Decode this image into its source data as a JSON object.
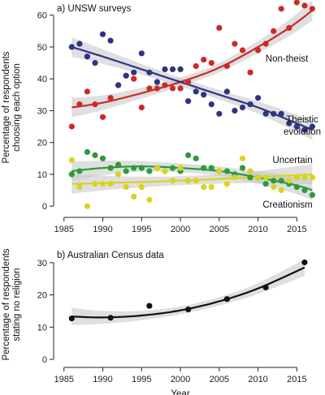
{
  "colors": {
    "nontheist": "#cc2a24",
    "theistic": "#2c3585",
    "uncertain": "#2e9a3a",
    "creationism": "#d8d420",
    "census": "#111111",
    "band": "#c4c4c4",
    "axis": "#222222"
  },
  "chart_data": [
    {
      "type": "scatter",
      "title": "a) UNSW surveys",
      "xlabel": "",
      "ylabel": "Percentage of respondents choosing each option",
      "ylabel_lines": [
        "Percentage of respondents",
        "choosing each option"
      ],
      "xlim": [
        1984.5,
        2018
      ],
      "ylim": [
        -2,
        64
      ],
      "xticks": [
        1985,
        1990,
        1995,
        2000,
        2005,
        2010,
        2015
      ],
      "yticks": [
        0,
        10,
        20,
        30,
        40,
        50,
        60
      ],
      "series": [
        {
          "name": "Non-theist",
          "label_lines": [
            "Non-theist"
          ],
          "color": "#cc2a24",
          "points": [
            [
              1986,
              25
            ],
            [
              1987,
              32
            ],
            [
              1988,
              36
            ],
            [
              1989,
              32
            ],
            [
              1990,
              28
            ],
            [
              1991,
              34
            ],
            [
              1992,
              38
            ],
            [
              1993,
              41
            ],
            [
              1994,
              40
            ],
            [
              1995,
              31
            ],
            [
              1996,
              37
            ],
            [
              1997,
              37
            ],
            [
              1998,
              38
            ],
            [
              1999,
              37
            ],
            [
              2000,
              37
            ],
            [
              2001,
              39
            ],
            [
              2002,
              44
            ],
            [
              2003,
              46
            ],
            [
              2004,
              45
            ],
            [
              2005,
              56
            ],
            [
              2006,
              44
            ],
            [
              2007,
              51
            ],
            [
              2008,
              49
            ],
            [
              2009,
              42
            ],
            [
              2010,
              49
            ],
            [
              2011,
              51
            ],
            [
              2012,
              55
            ],
            [
              2013,
              62
            ],
            [
              2014,
              56
            ],
            [
              2015,
              64
            ],
            [
              2016,
              63
            ],
            [
              2017,
              62
            ]
          ],
          "trend": [
            [
              1986,
              31
            ],
            [
              1990,
              32.5
            ],
            [
              1995,
              35.5
            ],
            [
              2000,
              39
            ],
            [
              2005,
              43.5
            ],
            [
              2010,
              50
            ],
            [
              2014,
              56
            ],
            [
              2017,
              61.5
            ]
          ]
        },
        {
          "name": "Theistic evolution",
          "label_lines": [
            "Theistic",
            "evolution"
          ],
          "color": "#2c3585",
          "points": [
            [
              1986,
              50
            ],
            [
              1987,
              51
            ],
            [
              1988,
              47
            ],
            [
              1989,
              45
            ],
            [
              1990,
              54
            ],
            [
              1991,
              52
            ],
            [
              1992,
              38
            ],
            [
              1993,
              41
            ],
            [
              1994,
              42
            ],
            [
              1995,
              48
            ],
            [
              1996,
              42
            ],
            [
              1997,
              39
            ],
            [
              1998,
              43
            ],
            [
              1999,
              43
            ],
            [
              2000,
              43
            ],
            [
              2001,
              33
            ],
            [
              2002,
              36
            ],
            [
              2003,
              35
            ],
            [
              2004,
              32
            ],
            [
              2005,
              29
            ],
            [
              2006,
              36
            ],
            [
              2007,
              30
            ],
            [
              2008,
              31
            ],
            [
              2009,
              32
            ],
            [
              2010,
              34
            ],
            [
              2011,
              29
            ],
            [
              2012,
              29
            ],
            [
              2013,
              29
            ],
            [
              2014,
              26
            ],
            [
              2015,
              25
            ],
            [
              2016,
              24
            ],
            [
              2017,
              25
            ]
          ],
          "trend": [
            [
              1986,
              50
            ],
            [
              1990,
              47
            ],
            [
              1995,
              43
            ],
            [
              2000,
              39
            ],
            [
              2005,
              35
            ],
            [
              2010,
              31
            ],
            [
              2015,
              26
            ],
            [
              2017,
              24
            ]
          ]
        },
        {
          "name": "Uncertain",
          "label_lines": [
            "Uncertain"
          ],
          "color": "#2e9a3a",
          "points": [
            [
              1986,
              10
            ],
            [
              1987,
              11
            ],
            [
              1988,
              17
            ],
            [
              1989,
              16
            ],
            [
              1990,
              15
            ],
            [
              1991,
              12
            ],
            [
              1992,
              13
            ],
            [
              1993,
              11
            ],
            [
              1994,
              12
            ],
            [
              1995,
              12
            ],
            [
              1996,
              11
            ],
            [
              1997,
              12
            ],
            [
              1998,
              11
            ],
            [
              1999,
              12
            ],
            [
              2000,
              11
            ],
            [
              2001,
              16
            ],
            [
              2002,
              15
            ],
            [
              2003,
              12
            ],
            [
              2004,
              12
            ],
            [
              2005,
              11
            ],
            [
              2006,
              11
            ],
            [
              2007,
              10
            ],
            [
              2008,
              12
            ],
            [
              2009,
              9
            ],
            [
              2010,
              9
            ],
            [
              2011,
              7
            ],
            [
              2012,
              8
            ],
            [
              2013,
              8
            ],
            [
              2014,
              7
            ],
            [
              2015,
              6
            ],
            [
              2016,
              5
            ],
            [
              2017,
              3.5
            ]
          ],
          "trend": [
            [
              1986,
              11
            ],
            [
              1990,
              12
            ],
            [
              1995,
              12.5
            ],
            [
              2000,
              12
            ],
            [
              2005,
              11
            ],
            [
              2010,
              9
            ],
            [
              2015,
              6.5
            ],
            [
              2017,
              5
            ]
          ]
        },
        {
          "name": "Creationism",
          "label_lines": [
            "Creationism"
          ],
          "color": "#d8d420",
          "points": [
            [
              1986,
              14.5
            ],
            [
              1987,
              6
            ],
            [
              1988,
              0
            ],
            [
              1989,
              7
            ],
            [
              1990,
              7
            ],
            [
              1991,
              7
            ],
            [
              1992,
              10
            ],
            [
              1993,
              6
            ],
            [
              1994,
              3
            ],
            [
              1995,
              6
            ],
            [
              1996,
              2
            ],
            [
              1997,
              12
            ],
            [
              1998,
              11
            ],
            [
              1999,
              8
            ],
            [
              2000,
              12
            ],
            [
              2001,
              8
            ],
            [
              2002,
              8
            ],
            [
              2003,
              6
            ],
            [
              2004,
              6
            ],
            [
              2005,
              11
            ],
            [
              2006,
              7
            ],
            [
              2007,
              9
            ],
            [
              2008,
              15
            ],
            [
              2009,
              11
            ],
            [
              2010,
              9
            ],
            [
              2011,
              9
            ],
            [
              2012,
              6
            ],
            [
              2013,
              5
            ],
            [
              2014,
              8
            ],
            [
              2015,
              9
            ],
            [
              2016,
              9
            ],
            [
              2017,
              9
            ]
          ],
          "trend": [
            [
              1986,
              7
            ],
            [
              2000,
              8
            ],
            [
              2017,
              10
            ]
          ]
        }
      ]
    },
    {
      "type": "scatter",
      "title": "b) Australian Census data",
      "xlabel": "Year",
      "ylabel": "Percentage of respondents stating no religion",
      "ylabel_lines": [
        "Percentage of respondents",
        "stating no religion"
      ],
      "xlim": [
        1984.5,
        2018
      ],
      "ylim": [
        -1,
        35
      ],
      "xticks": [
        1985,
        1990,
        1995,
        2000,
        2005,
        2010,
        2015
      ],
      "yticks": [
        0,
        10,
        20,
        30
      ],
      "series": [
        {
          "color": "#111111",
          "points": [
            [
              1986,
              12.7
            ],
            [
              1991,
              12.9
            ],
            [
              1996,
              16.6
            ],
            [
              2001,
              15.5
            ],
            [
              2006,
              18.7
            ],
            [
              2011,
              22.3
            ],
            [
              2016,
              30.1
            ]
          ],
          "trend": [
            [
              1986,
              13.3
            ],
            [
              1990,
              13
            ],
            [
              1995,
              13.6
            ],
            [
              2000,
              15.2
            ],
            [
              2005,
              18
            ],
            [
              2010,
              22
            ],
            [
              2016,
              28.5
            ]
          ]
        }
      ]
    }
  ]
}
